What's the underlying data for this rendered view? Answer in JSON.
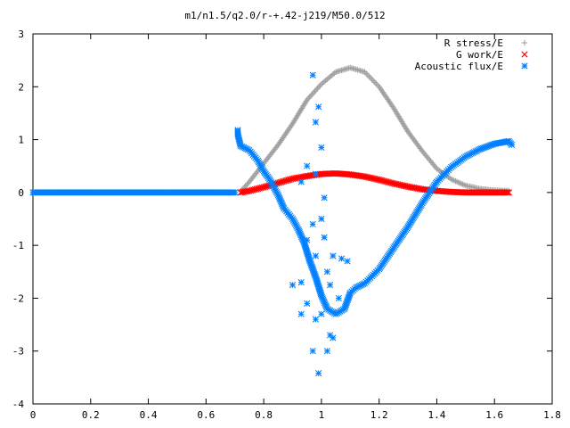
{
  "chart_data": {
    "type": "scatter",
    "title": "m1/n1.5/q2.0/r-+.42-j219/M50.0/512",
    "xlabel": "",
    "ylabel": "",
    "xlim": [
      0,
      1.8
    ],
    "ylim": [
      -4,
      3
    ],
    "x_ticks": [
      "0",
      "0.2",
      "0.4",
      "0.6",
      "0.8",
      "1",
      "1.2",
      "1.4",
      "1.6",
      "1.8"
    ],
    "y_ticks": [
      "-4",
      "-3",
      "-2",
      "-1",
      "0",
      "1",
      "2",
      "3"
    ],
    "grid": false,
    "legend_position": "top-right",
    "series": [
      {
        "name": "R stress/E",
        "marker": "plus",
        "color": "#a0a0a0",
        "points": [
          [
            0.0,
            0
          ],
          [
            0.1,
            0
          ],
          [
            0.2,
            0
          ],
          [
            0.3,
            0
          ],
          [
            0.4,
            0
          ],
          [
            0.5,
            0
          ],
          [
            0.6,
            0
          ],
          [
            0.7,
            0
          ],
          [
            0.72,
            0.02
          ],
          [
            0.75,
            0.2
          ],
          [
            0.8,
            0.55
          ],
          [
            0.85,
            0.9
          ],
          [
            0.9,
            1.3
          ],
          [
            0.95,
            1.75
          ],
          [
            1.0,
            2.05
          ],
          [
            1.05,
            2.28
          ],
          [
            1.1,
            2.36
          ],
          [
            1.15,
            2.28
          ],
          [
            1.2,
            2.0
          ],
          [
            1.25,
            1.6
          ],
          [
            1.3,
            1.15
          ],
          [
            1.35,
            0.78
          ],
          [
            1.4,
            0.45
          ],
          [
            1.45,
            0.25
          ],
          [
            1.5,
            0.13
          ],
          [
            1.55,
            0.07
          ],
          [
            1.6,
            0.04
          ],
          [
            1.65,
            0.03
          ]
        ]
      },
      {
        "name": "G work/E",
        "marker": "cross",
        "color": "#ff0000",
        "points": [
          [
            0.72,
            0.0
          ],
          [
            0.75,
            0.03
          ],
          [
            0.8,
            0.1
          ],
          [
            0.85,
            0.18
          ],
          [
            0.9,
            0.26
          ],
          [
            0.95,
            0.31
          ],
          [
            1.0,
            0.35
          ],
          [
            1.05,
            0.36
          ],
          [
            1.1,
            0.34
          ],
          [
            1.15,
            0.3
          ],
          [
            1.2,
            0.24
          ],
          [
            1.25,
            0.17
          ],
          [
            1.3,
            0.11
          ],
          [
            1.35,
            0.06
          ],
          [
            1.4,
            0.03
          ],
          [
            1.45,
            0.01
          ],
          [
            1.5,
            0.0
          ],
          [
            1.55,
            0.0
          ],
          [
            1.6,
            0.0
          ],
          [
            1.65,
            0.0
          ]
        ]
      },
      {
        "name": "Acoustic flux/E",
        "marker": "star",
        "color": "#0080ff",
        "points": [
          [
            0.0,
            0
          ],
          [
            0.1,
            0
          ],
          [
            0.2,
            0
          ],
          [
            0.3,
            0
          ],
          [
            0.4,
            0
          ],
          [
            0.5,
            0
          ],
          [
            0.6,
            0
          ],
          [
            0.7,
            0
          ],
          [
            0.71,
            1.18
          ],
          [
            0.71,
            1.1
          ],
          [
            0.72,
            0.88
          ],
          [
            0.75,
            0.8
          ],
          [
            0.78,
            0.6
          ],
          [
            0.8,
            0.4
          ],
          [
            0.82,
            0.25
          ],
          [
            0.85,
            -0.05
          ],
          [
            0.87,
            -0.3
          ],
          [
            0.9,
            -0.5
          ],
          [
            0.92,
            -0.7
          ],
          [
            0.94,
            -0.95
          ],
          [
            0.96,
            -1.3
          ],
          [
            0.98,
            -1.6
          ],
          [
            1.0,
            -1.95
          ],
          [
            1.02,
            -2.2
          ],
          [
            1.05,
            -2.3
          ],
          [
            1.08,
            -2.2
          ],
          [
            1.1,
            -1.9
          ],
          [
            1.12,
            -1.8
          ],
          [
            1.15,
            -1.72
          ],
          [
            1.2,
            -1.45
          ],
          [
            1.25,
            -1.05
          ],
          [
            1.3,
            -0.65
          ],
          [
            1.35,
            -0.2
          ],
          [
            1.4,
            0.2
          ],
          [
            1.45,
            0.48
          ],
          [
            1.5,
            0.68
          ],
          [
            1.55,
            0.82
          ],
          [
            1.6,
            0.92
          ],
          [
            1.65,
            0.97
          ],
          [
            1.66,
            0.9
          ],
          [
            0.9,
            -1.75
          ],
          [
            0.93,
            -1.7
          ],
          [
            0.95,
            -2.1
          ],
          [
            0.93,
            -2.3
          ],
          [
            0.98,
            -2.4
          ],
          [
            0.97,
            -3.0
          ],
          [
            0.99,
            -3.42
          ],
          [
            1.02,
            -3.0
          ],
          [
            1.03,
            -2.7
          ],
          [
            1.0,
            -2.3
          ],
          [
            1.02,
            -1.5
          ],
          [
            1.04,
            -1.2
          ],
          [
            0.98,
            -1.2
          ],
          [
            1.01,
            -0.85
          ],
          [
            0.95,
            -0.9
          ],
          [
            0.97,
            -0.6
          ],
          [
            1.0,
            -0.5
          ],
          [
            0.93,
            0.2
          ],
          [
            0.95,
            0.5
          ],
          [
            0.98,
            0.35
          ],
          [
            0.97,
            2.22
          ],
          [
            0.99,
            1.62
          ],
          [
            0.98,
            1.33
          ],
          [
            1.0,
            0.85
          ],
          [
            1.01,
            -0.1
          ],
          [
            1.03,
            -1.75
          ],
          [
            1.06,
            -2.0
          ],
          [
            1.07,
            -1.25
          ],
          [
            1.09,
            -1.3
          ],
          [
            1.04,
            -2.75
          ]
        ]
      }
    ]
  }
}
